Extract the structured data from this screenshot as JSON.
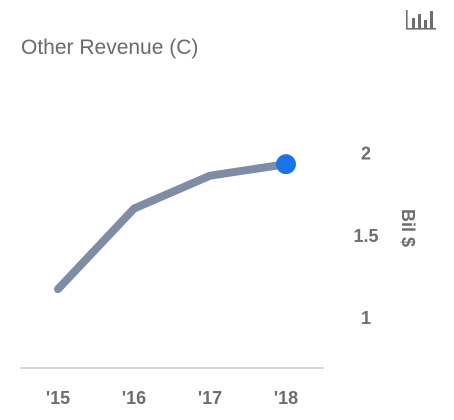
{
  "chart_data": {
    "type": "line",
    "title": "Other Revenue (C)",
    "xlabel": "",
    "ylabel": "Bil $",
    "categories": [
      "'15",
      "'16",
      "'17",
      "'18"
    ],
    "series": [
      {
        "values": [
          1.17,
          1.66,
          1.86,
          1.93
        ]
      }
    ],
    "ylim": [
      0.8,
      2.15
    ],
    "yticks": [
      1,
      1.5,
      2
    ],
    "ytick_labels": [
      "1",
      "1.5",
      "2"
    ],
    "grid": false,
    "legend": "none",
    "y_axis_side": "right",
    "colors": {
      "line": "#7f8ca6",
      "last_point": "#1a73e8",
      "axis": "#cccccc",
      "text": "#6e6e6e"
    }
  },
  "toolbar": {
    "chart_icon": "bar-chart-icon"
  }
}
